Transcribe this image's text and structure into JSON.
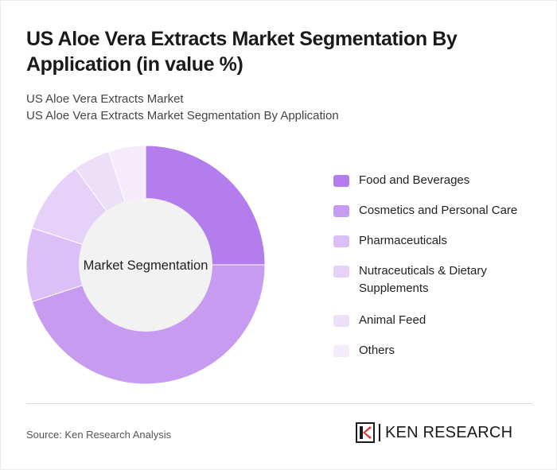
{
  "title": "US Aloe Vera Extracts Market Segmentation By Application (in value %)",
  "subtitle_line1": "US Aloe Vera Extracts Market",
  "subtitle_line2": "US Aloe Vera Extracts Market Segmentation By Application",
  "center_label": "Market Segmentation",
  "source": "Source: Ken Research Analysis",
  "logo": {
    "text": "KEN RESEARCH",
    "icon": "ken-research-logo-icon"
  },
  "chart_data": {
    "type": "pie",
    "title": "US Aloe Vera Extracts Market Segmentation By Application (in value %)",
    "center_label": "Market Segmentation",
    "categories": [
      "Food and Beverages",
      "Cosmetics and Personal Care",
      "Pharmaceuticals",
      "Nutraceuticals & Dietary Supplements",
      "Animal Feed",
      "Others"
    ],
    "values": [
      25,
      45,
      10,
      10,
      5,
      5
    ],
    "colors": [
      "#b47ded",
      "#c79cf0",
      "#dbbff6",
      "#e6d1f8",
      "#eedff9",
      "#f4ecfb"
    ],
    "legend_position": "right",
    "donut": true
  }
}
